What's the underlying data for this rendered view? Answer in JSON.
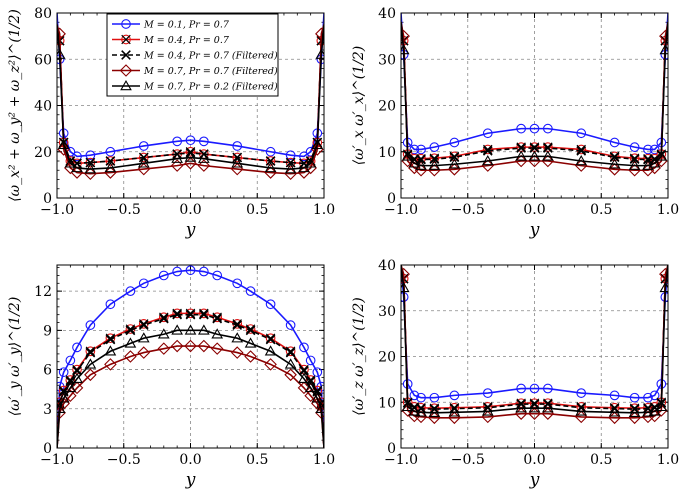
{
  "chart_data": [
    {
      "type": "line",
      "title": "",
      "xlabel": "y",
      "ylabel": "⟨ω_x² + ω_y² + ω_z²⟩^(1/2)",
      "xlim": [
        -1,
        1
      ],
      "ylim": [
        0,
        80
      ],
      "xticks": [
        "−1.0",
        "−0.5",
        "0.0",
        "0.5",
        "1.0"
      ],
      "yticks": [
        "0",
        "20",
        "40",
        "60",
        "80"
      ],
      "legend_position": "top-left",
      "legend": [
        "M = 0.1, Pr = 0.7",
        "M = 0.4, Pr = 0.7",
        "M = 0.4, Pr = 0.7 (Filtered)",
        "M = 0.7, Pr = 0.7 (Filtered)",
        "M = 0.7, Pr = 0.2 (Filtered)"
      ],
      "x": [
        -1.0,
        -0.98,
        -0.95,
        -0.9,
        -0.85,
        -0.75,
        -0.6,
        -0.35,
        -0.1,
        0.0,
        0.1,
        0.35,
        0.6,
        0.75,
        0.85,
        0.9,
        0.95,
        0.98,
        1.0
      ],
      "series": [
        {
          "name": "M = 0.1, Pr = 0.7",
          "values": [
            80,
            60,
            28,
            20,
            18,
            18.5,
            20,
            22.5,
            24.5,
            25,
            24.5,
            22.5,
            20,
            18.5,
            18,
            20,
            28,
            60,
            80
          ]
        },
        {
          "name": "M = 0.4, Pr = 0.7",
          "values": [
            75,
            68,
            24,
            16,
            15,
            15.3,
            16,
            17.5,
            19,
            20,
            19,
            17.5,
            16,
            15.3,
            15,
            16,
            24,
            68,
            75
          ]
        },
        {
          "name": "M = 0.4, Pr = 0.7 (Filtered)",
          "values": [
            75,
            68,
            24,
            16,
            15,
            15.3,
            16,
            17.5,
            19,
            19.5,
            19,
            17.5,
            16,
            15.3,
            15,
            16,
            24,
            68,
            75
          ]
        },
        {
          "name": "M = 0.7, Pr = 0.7 (Filtered)",
          "values": [
            75,
            71,
            21,
            13,
            11,
            10.5,
            11,
            12.5,
            14,
            15,
            14,
            12.5,
            11,
            10.5,
            11,
            13,
            21,
            71,
            75
          ]
        },
        {
          "name": "M = 0.7, Pr = 0.2 (Filtered)",
          "values": [
            75,
            62,
            23,
            15,
            13,
            12.5,
            13,
            15,
            17,
            17.5,
            17,
            15,
            13,
            12.5,
            13,
            15,
            23,
            62,
            75
          ]
        }
      ]
    },
    {
      "type": "line",
      "title": "",
      "xlabel": "y",
      "ylabel": "⟨ω′_x ω′_x⟩^(1/2)",
      "xlim": [
        -1,
        1
      ],
      "ylim": [
        0,
        40
      ],
      "xticks": [
        "−1.0",
        "−0.5",
        "0.0",
        "0.5",
        "1.0"
      ],
      "yticks": [
        "0",
        "10",
        "20",
        "30",
        "40"
      ],
      "x": [
        -1.0,
        -0.98,
        -0.95,
        -0.9,
        -0.85,
        -0.75,
        -0.6,
        -0.35,
        -0.1,
        0.0,
        0.1,
        0.35,
        0.6,
        0.75,
        0.85,
        0.9,
        0.95,
        0.98,
        1.0
      ],
      "series": [
        {
          "name": "M = 0.1, Pr = 0.7",
          "values": [
            40,
            31,
            12,
            10.5,
            10.5,
            11,
            12,
            14,
            15,
            15,
            15,
            14,
            12,
            11,
            10.5,
            10.5,
            12,
            31,
            40
          ]
        },
        {
          "name": "M = 0.4, Pr = 0.7",
          "values": [
            38,
            34,
            9.5,
            8.5,
            8.5,
            8.6,
            9,
            10.5,
            11,
            11,
            11,
            10.5,
            9,
            8.6,
            8.5,
            8.5,
            9.5,
            34,
            38
          ]
        },
        {
          "name": "M = 0.4, Pr = 0.7 (Filtered)",
          "values": [
            38,
            34,
            9.3,
            8.3,
            8.3,
            8.4,
            8.8,
            10.2,
            10.8,
            10.8,
            10.8,
            10.2,
            8.8,
            8.4,
            8.3,
            8.3,
            9.3,
            34,
            38
          ]
        },
        {
          "name": "M = 0.7, Pr = 0.7 (Filtered)",
          "values": [
            38,
            35,
            8,
            6.5,
            6,
            6,
            6.2,
            7,
            8,
            8,
            8,
            7,
            6.2,
            6,
            6,
            6.5,
            8,
            35,
            38
          ]
        },
        {
          "name": "M = 0.7, Pr = 0.2 (Filtered)",
          "values": [
            38,
            32,
            9,
            7.5,
            7,
            7,
            7.3,
            8,
            9,
            9,
            9,
            8,
            7.3,
            7,
            7,
            7.5,
            9,
            32,
            38
          ]
        }
      ]
    },
    {
      "type": "line",
      "title": "",
      "xlabel": "y",
      "ylabel": "⟨ω′_y ω′_y⟩^(1/2)",
      "xlim": [
        -1,
        1
      ],
      "ylim": [
        0,
        14
      ],
      "xticks": [
        "−1.0",
        "−0.5",
        "0.0",
        "0.5",
        "1.0"
      ],
      "yticks": [
        "0",
        "3",
        "6",
        "9",
        "12"
      ],
      "x": [
        -1.0,
        -0.98,
        -0.95,
        -0.9,
        -0.85,
        -0.75,
        -0.6,
        -0.45,
        -0.35,
        -0.2,
        -0.1,
        0.0,
        0.1,
        0.2,
        0.35,
        0.45,
        0.6,
        0.75,
        0.85,
        0.9,
        0.95,
        0.98,
        1.0
      ],
      "series": [
        {
          "name": "M = 0.1, Pr = 0.7",
          "values": [
            0,
            4.7,
            5.8,
            6.7,
            7.7,
            9.4,
            11.0,
            12.0,
            12.6,
            13.2,
            13.5,
            13.6,
            13.5,
            13.2,
            12.6,
            12.0,
            11.0,
            9.4,
            7.7,
            6.7,
            5.8,
            4.7,
            0
          ]
        },
        {
          "name": "M = 0.4, Pr = 0.7",
          "values": [
            0,
            3.5,
            4.4,
            5.2,
            6.0,
            7.4,
            8.4,
            9.1,
            9.5,
            10.0,
            10.3,
            10.3,
            10.3,
            10.0,
            9.5,
            9.1,
            8.4,
            7.4,
            6.0,
            5.2,
            4.4,
            3.5,
            0
          ]
        },
        {
          "name": "M = 0.4, Pr = 0.7 (Filtered)",
          "values": [
            0,
            3.4,
            4.3,
            5.1,
            5.9,
            7.3,
            8.3,
            9.0,
            9.4,
            9.9,
            10.2,
            10.2,
            10.2,
            9.9,
            9.4,
            9.0,
            8.3,
            7.3,
            5.9,
            5.1,
            4.3,
            3.4,
            0
          ]
        },
        {
          "name": "M = 0.7, Pr = 0.7 (Filtered)",
          "values": [
            0,
            2.7,
            3.4,
            4.0,
            4.6,
            5.6,
            6.4,
            7.0,
            7.3,
            7.6,
            7.8,
            7.8,
            7.8,
            7.6,
            7.3,
            7.0,
            6.4,
            5.6,
            4.6,
            4.0,
            3.4,
            2.7,
            0
          ]
        },
        {
          "name": "M = 0.7, Pr = 0.2 (Filtered)",
          "values": [
            0,
            3.0,
            3.8,
            4.6,
            5.3,
            6.4,
            7.4,
            8.0,
            8.4,
            8.7,
            9.0,
            9.0,
            9.0,
            8.7,
            8.4,
            8.0,
            7.4,
            6.4,
            5.3,
            4.6,
            3.8,
            3.0,
            0
          ]
        }
      ]
    },
    {
      "type": "line",
      "title": "",
      "xlabel": "y",
      "ylabel": "⟨ω′_z ω′_z⟩^(1/2)",
      "xlim": [
        -1,
        1
      ],
      "ylim": [
        0,
        40
      ],
      "xticks": [
        "−1.0",
        "−0.5",
        "0.0",
        "0.5",
        "1.0"
      ],
      "yticks": [
        "0",
        "10",
        "20",
        "30",
        "40"
      ],
      "x": [
        -1.0,
        -0.98,
        -0.95,
        -0.9,
        -0.85,
        -0.75,
        -0.6,
        -0.35,
        -0.1,
        0.0,
        0.1,
        0.35,
        0.6,
        0.75,
        0.85,
        0.9,
        0.95,
        0.98,
        1.0
      ],
      "series": [
        {
          "name": "M = 0.1, Pr = 0.7",
          "values": [
            40,
            33,
            14,
            11.5,
            11,
            11,
            11.5,
            12,
            13,
            13,
            13,
            12,
            11.5,
            11,
            11,
            11.5,
            14,
            33,
            40
          ]
        },
        {
          "name": "M = 0.4, Pr = 0.7",
          "values": [
            40,
            37,
            10,
            9,
            8.8,
            8.7,
            8.8,
            9,
            9.8,
            9.8,
            9.8,
            9,
            8.8,
            8.7,
            8.8,
            9,
            10,
            37,
            40
          ]
        },
        {
          "name": "M = 0.4, Pr = 0.7 (Filtered)",
          "values": [
            40,
            37,
            9.8,
            8.8,
            8.6,
            8.5,
            8.6,
            8.8,
            9.6,
            9.6,
            9.6,
            8.8,
            8.6,
            8.5,
            8.6,
            8.8,
            9.8,
            37,
            40
          ]
        },
        {
          "name": "M = 0.7, Pr = 0.7 (Filtered)",
          "values": [
            40,
            38,
            8.2,
            7,
            6.8,
            6.6,
            6.6,
            6.8,
            7.5,
            7.5,
            7.5,
            6.8,
            6.6,
            6.6,
            6.8,
            7,
            8.2,
            38,
            40
          ]
        },
        {
          "name": "M = 0.7, Pr = 0.2 (Filtered)",
          "values": [
            40,
            35,
            9,
            8,
            7.8,
            7.7,
            7.8,
            8,
            8.7,
            8.7,
            8.7,
            8,
            7.8,
            7.7,
            7.8,
            8,
            9,
            35,
            40
          ]
        }
      ]
    }
  ]
}
